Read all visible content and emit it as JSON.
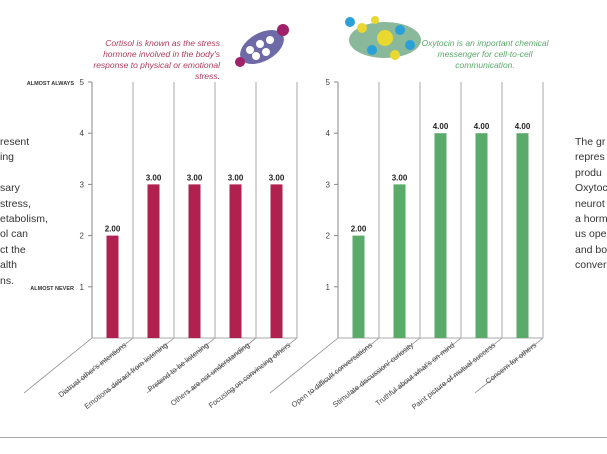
{
  "left_text": [
    "resent",
    "ing",
    "",
    "sary",
    "stress,",
    "etabolism,",
    "ol can",
    "ct the",
    "alth",
    "ns."
  ],
  "right_text": [
    "The gr",
    "repres",
    "produ",
    "Oxytoc",
    "neurot",
    "a horm",
    "us ope",
    "and bo",
    "conver"
  ],
  "captions": {
    "cortisol": "Cortisol is known as the stress hormone involved in the body's response to physical or emotional stress.",
    "oxytocin": "Oxytocin is an important chemical messenger for cell-to-cell communication."
  },
  "chart_data": [
    {
      "type": "bar",
      "title": "Cortisol",
      "categories": [
        "Distrust other's intentions",
        "Emotions detract from listening",
        "Pretend to be listening",
        "Others are not understanding",
        "Focusing on convincing others"
      ],
      "values": [
        2.0,
        3.0,
        3.0,
        3.0,
        3.0
      ],
      "data_labels": [
        "2.00",
        "3.00",
        "3.00",
        "3.00",
        "3.00"
      ],
      "yticks": [
        "1",
        "2",
        "3",
        "4",
        "5"
      ],
      "ytick_labels": {
        "high": "ALMOST ALWAYS",
        "low": "ALMOST NEVER"
      },
      "ylim": [
        0,
        5
      ],
      "color": "#b0214f"
    },
    {
      "type": "bar",
      "title": "Oxytocin",
      "categories": [
        "Open to difficult conversations",
        "Stimulate discussion/ curiosity",
        "Truthful about what's on mind",
        "Paint picture of mutual success",
        "Concern for others"
      ],
      "values": [
        2.0,
        3.0,
        4.0,
        4.0,
        4.0
      ],
      "data_labels": [
        "2.00",
        "3.00",
        "4.00",
        "4.00",
        "4.00"
      ],
      "yticks": [
        "1",
        "2",
        "3",
        "4",
        "5"
      ],
      "ylim": [
        0,
        5
      ],
      "color": "#5aaa6a"
    }
  ]
}
